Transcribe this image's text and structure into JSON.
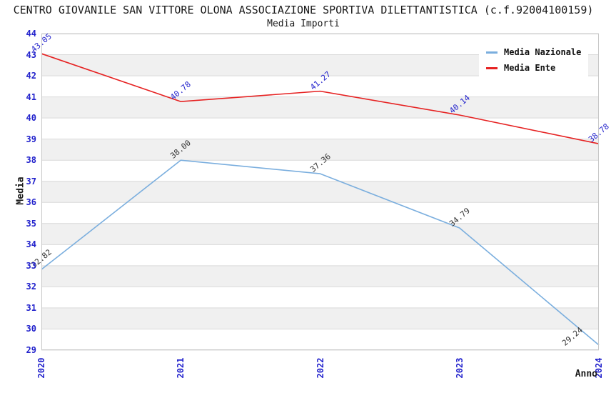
{
  "header": {
    "title": "CENTRO GIOVANILE SAN VITTORE OLONA ASSOCIAZIONE SPORTIVA DILETTANTISTICA (c.f.92004100159)",
    "subtitle": "Media Importi"
  },
  "chart_data": {
    "type": "line",
    "x_tick_labels": [
      "2020",
      "2021",
      "2022",
      "2023",
      "2024"
    ],
    "y_tick_labels": [
      "44",
      "43",
      "42",
      "41",
      "40",
      "39",
      "38",
      "37",
      "36",
      "35",
      "34",
      "33",
      "32",
      "31",
      "30",
      "29"
    ],
    "series": [
      {
        "name": "Media Nazionale",
        "color": "#7aaede",
        "label_color": "#333333",
        "values": [
          32.82,
          38.0,
          37.36,
          34.79,
          29.24
        ],
        "labels": [
          "32.82",
          "38.00",
          "37.36",
          "34.79",
          "29.24"
        ]
      },
      {
        "name": "Media Ente",
        "color": "#e62222",
        "label_color": "#2222cc",
        "values": [
          43.05,
          40.78,
          41.27,
          40.14,
          38.78
        ],
        "labels": [
          "43.05",
          "40.78",
          "41.27",
          "40.14",
          "38.78"
        ]
      }
    ],
    "xlabel": "Anno",
    "ylabel": "Media",
    "ylim": [
      29,
      44
    ],
    "y_tick_step": 1,
    "grid": "horizontal",
    "legend_position": "top-right",
    "tick_label_color": "#2222cc",
    "grid_color": "#d9d9d9",
    "band_color": "#f0f0f0",
    "plot_border_color": "#c8c8c8"
  }
}
